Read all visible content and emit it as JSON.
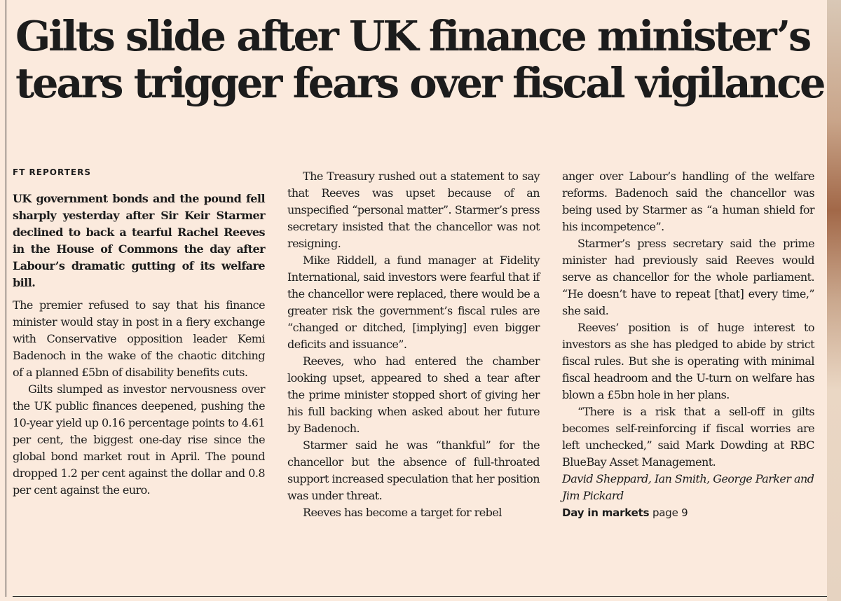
{
  "headline": "Gilts slide after UK finance minister’s tears trigger fears over fiscal vigilance",
  "byline": "FT REPORTERS",
  "standfirst": "UK government bonds and the pound fell sharply yesterday after Sir Keir Starmer declined to back a tearful Rachel Reeves in the House of Commons the day after Labour’s dramatic gutting of its welfare bill.",
  "paragraphs": [
    "The premier refused to say that his finance minister would stay in post in a fiery exchange with Conservative opposition leader Kemi Badenoch in the wake of the chaotic ditching of a planned £5bn of disability benefits cuts.",
    "Gilts slumped as investor nervousness over the UK public finances deepened, pushing the 10-year yield up 0.16 percentage points to 4.61 per cent, the biggest one-day rise since the global bond market rout in April. The pound dropped 1.2 per cent against the dollar and 0.8 per cent against the euro.",
    "The Treasury rushed out a statement to say that Reeves was upset because of an unspecified “personal matter”. Starmer’s press secretary insisted that the chancellor was not resigning.",
    "Mike Riddell, a fund manager at Fidelity International, said investors were fearful that if the chancellor were replaced, there would be a greater risk the government’s fiscal rules are “changed or ditched, [implying] even bigger deficits and issuance”.",
    "Reeves, who had entered the chamber looking upset, appeared to shed a tear after the prime minister stopped short of giving her his full backing when asked about her future by Badenoch.",
    "Starmer said he was “thankful” for the chancellor but the absence of full-throated support increased speculation that her position was under threat.",
    "Reeves has become a target for rebel",
    "anger over Labour’s handling of the welfare reforms. Badenoch said the chancellor was being used by Starmer as “a human shield for his incompetence”.",
    "Starmer’s press secretary said the prime minister had previously said Reeves would serve as chancellor for the whole parliament. “He doesn’t have to repeat [that] every time,” she said.",
    "Reeves’ position is of huge interest to investors as she has pledged to abide by strict fiscal rules. But she is operating with minimal fiscal headroom and the U-turn on welfare has blown a £5bn hole in her plans.",
    "“There is a risk that a sell-off in gilts becomes self-reinforcing if fiscal worries are left unchecked,” said Mark Dowding at RBC BlueBay Asset Management."
  ],
  "signoff": "David Sheppard, Ian Smith, George Parker and Jim Pickard",
  "cross_reference": {
    "label": "Day in markets",
    "page": "page 9"
  }
}
